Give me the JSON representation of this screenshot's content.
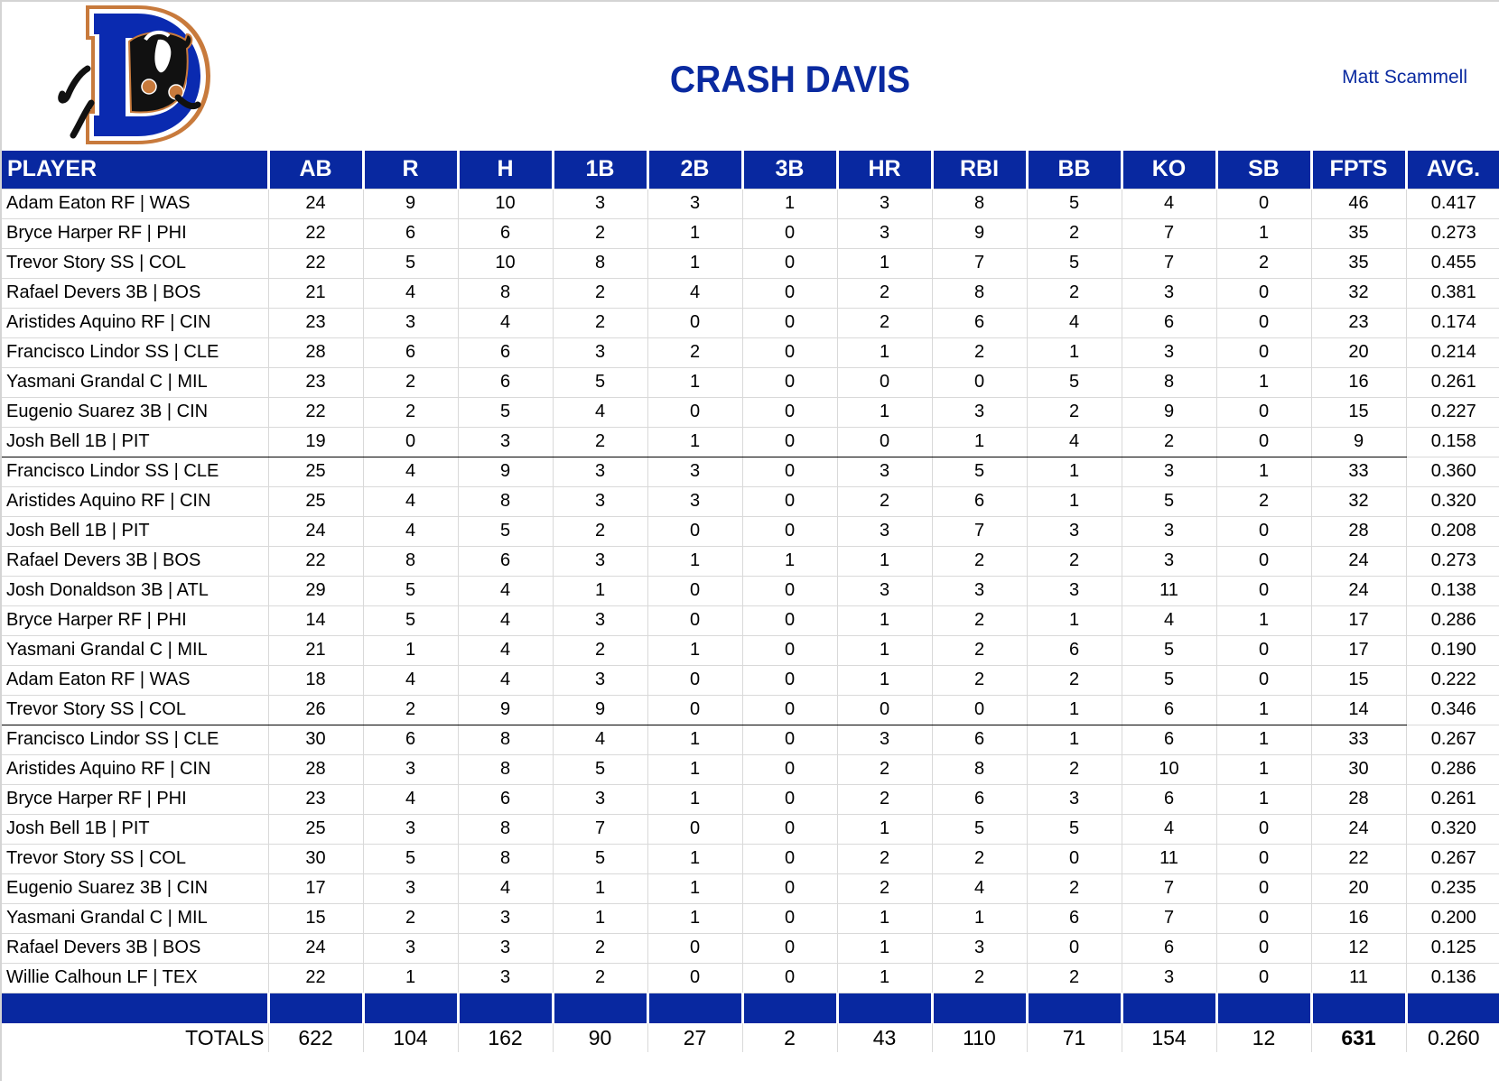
{
  "header": {
    "title": "CRASH DAVIS",
    "owner": "Matt Scammell",
    "logo": "durham-bulls-d-logo"
  },
  "colors": {
    "brand_blue": "#0828a0",
    "title_blue": "#0a2aa0",
    "grid": "#d9d9d9"
  },
  "table": {
    "columns": [
      "PLAYER",
      "AB",
      "R",
      "H",
      "1B",
      "2B",
      "3B",
      "HR",
      "RBI",
      "BB",
      "KO",
      "SB",
      "FPTS",
      "AVG."
    ],
    "rows": [
      [
        "Adam Eaton RF | WAS",
        "24",
        "9",
        "10",
        "3",
        "3",
        "1",
        "3",
        "8",
        "5",
        "4",
        "0",
        "46",
        "0.417"
      ],
      [
        "Bryce Harper RF | PHI",
        "22",
        "6",
        "6",
        "2",
        "1",
        "0",
        "3",
        "9",
        "2",
        "7",
        "1",
        "35",
        "0.273"
      ],
      [
        "Trevor Story SS | COL",
        "22",
        "5",
        "10",
        "8",
        "1",
        "0",
        "1",
        "7",
        "5",
        "7",
        "2",
        "35",
        "0.455"
      ],
      [
        "Rafael Devers 3B | BOS",
        "21",
        "4",
        "8",
        "2",
        "4",
        "0",
        "2",
        "8",
        "2",
        "3",
        "0",
        "32",
        "0.381"
      ],
      [
        "Aristides Aquino RF | CIN",
        "23",
        "3",
        "4",
        "2",
        "0",
        "0",
        "2",
        "6",
        "4",
        "6",
        "0",
        "23",
        "0.174"
      ],
      [
        "Francisco Lindor SS | CLE",
        "28",
        "6",
        "6",
        "3",
        "2",
        "0",
        "1",
        "2",
        "1",
        "3",
        "0",
        "20",
        "0.214"
      ],
      [
        "Yasmani Grandal C | MIL",
        "23",
        "2",
        "6",
        "5",
        "1",
        "0",
        "0",
        "0",
        "5",
        "8",
        "1",
        "16",
        "0.261"
      ],
      [
        "Eugenio Suarez 3B | CIN",
        "22",
        "2",
        "5",
        "4",
        "0",
        "0",
        "1",
        "3",
        "2",
        "9",
        "0",
        "15",
        "0.227"
      ],
      [
        "Josh Bell 1B | PIT",
        "19",
        "0",
        "3",
        "2",
        "1",
        "0",
        "0",
        "1",
        "4",
        "2",
        "0",
        "9",
        "0.158"
      ],
      [
        "Francisco Lindor SS | CLE",
        "25",
        "4",
        "9",
        "3",
        "3",
        "0",
        "3",
        "5",
        "1",
        "3",
        "1",
        "33",
        "0.360"
      ],
      [
        "Aristides Aquino RF | CIN",
        "25",
        "4",
        "8",
        "3",
        "3",
        "0",
        "2",
        "6",
        "1",
        "5",
        "2",
        "32",
        "0.320"
      ],
      [
        "Josh Bell 1B | PIT",
        "24",
        "4",
        "5",
        "2",
        "0",
        "0",
        "3",
        "7",
        "3",
        "3",
        "0",
        "28",
        "0.208"
      ],
      [
        "Rafael Devers 3B | BOS",
        "22",
        "8",
        "6",
        "3",
        "1",
        "1",
        "1",
        "2",
        "2",
        "3",
        "0",
        "24",
        "0.273"
      ],
      [
        "Josh Donaldson 3B | ATL",
        "29",
        "5",
        "4",
        "1",
        "0",
        "0",
        "3",
        "3",
        "3",
        "11",
        "0",
        "24",
        "0.138"
      ],
      [
        "Bryce Harper RF | PHI",
        "14",
        "5",
        "4",
        "3",
        "0",
        "0",
        "1",
        "2",
        "1",
        "4",
        "1",
        "17",
        "0.286"
      ],
      [
        "Yasmani Grandal C | MIL",
        "21",
        "1",
        "4",
        "2",
        "1",
        "0",
        "1",
        "2",
        "6",
        "5",
        "0",
        "17",
        "0.190"
      ],
      [
        "Adam Eaton RF | WAS",
        "18",
        "4",
        "4",
        "3",
        "0",
        "0",
        "1",
        "2",
        "2",
        "5",
        "0",
        "15",
        "0.222"
      ],
      [
        "Trevor Story SS | COL",
        "26",
        "2",
        "9",
        "9",
        "0",
        "0",
        "0",
        "0",
        "1",
        "6",
        "1",
        "14",
        "0.346"
      ],
      [
        "Francisco Lindor SS | CLE",
        "30",
        "6",
        "8",
        "4",
        "1",
        "0",
        "3",
        "6",
        "1",
        "6",
        "1",
        "33",
        "0.267"
      ],
      [
        "Aristides Aquino RF | CIN",
        "28",
        "3",
        "8",
        "5",
        "1",
        "0",
        "2",
        "8",
        "2",
        "10",
        "1",
        "30",
        "0.286"
      ],
      [
        "Bryce Harper RF | PHI",
        "23",
        "4",
        "6",
        "3",
        "1",
        "0",
        "2",
        "6",
        "3",
        "6",
        "1",
        "28",
        "0.261"
      ],
      [
        "Josh Bell 1B | PIT",
        "25",
        "3",
        "8",
        "7",
        "0",
        "0",
        "1",
        "5",
        "5",
        "4",
        "0",
        "24",
        "0.320"
      ],
      [
        "Trevor Story SS | COL",
        "30",
        "5",
        "8",
        "5",
        "1",
        "0",
        "2",
        "2",
        "0",
        "11",
        "0",
        "22",
        "0.267"
      ],
      [
        "Eugenio Suarez 3B | CIN",
        "17",
        "3",
        "4",
        "1",
        "1",
        "0",
        "2",
        "4",
        "2",
        "7",
        "0",
        "20",
        "0.235"
      ],
      [
        "Yasmani Grandal C | MIL",
        "15",
        "2",
        "3",
        "1",
        "1",
        "0",
        "1",
        "1",
        "6",
        "7",
        "0",
        "16",
        "0.200"
      ],
      [
        "Rafael Devers 3B | BOS",
        "24",
        "3",
        "3",
        "2",
        "0",
        "0",
        "1",
        "3",
        "0",
        "6",
        "0",
        "12",
        "0.125"
      ],
      [
        "Willie Calhoun LF | TEX",
        "22",
        "1",
        "3",
        "2",
        "0",
        "0",
        "1",
        "2",
        "2",
        "3",
        "0",
        "11",
        "0.136"
      ]
    ],
    "separator_after_rows": [
      8,
      17
    ],
    "totals": [
      "TOTALS",
      "622",
      "104",
      "162",
      "90",
      "27",
      "2",
      "43",
      "110",
      "71",
      "154",
      "12",
      "631",
      "0.260"
    ]
  }
}
